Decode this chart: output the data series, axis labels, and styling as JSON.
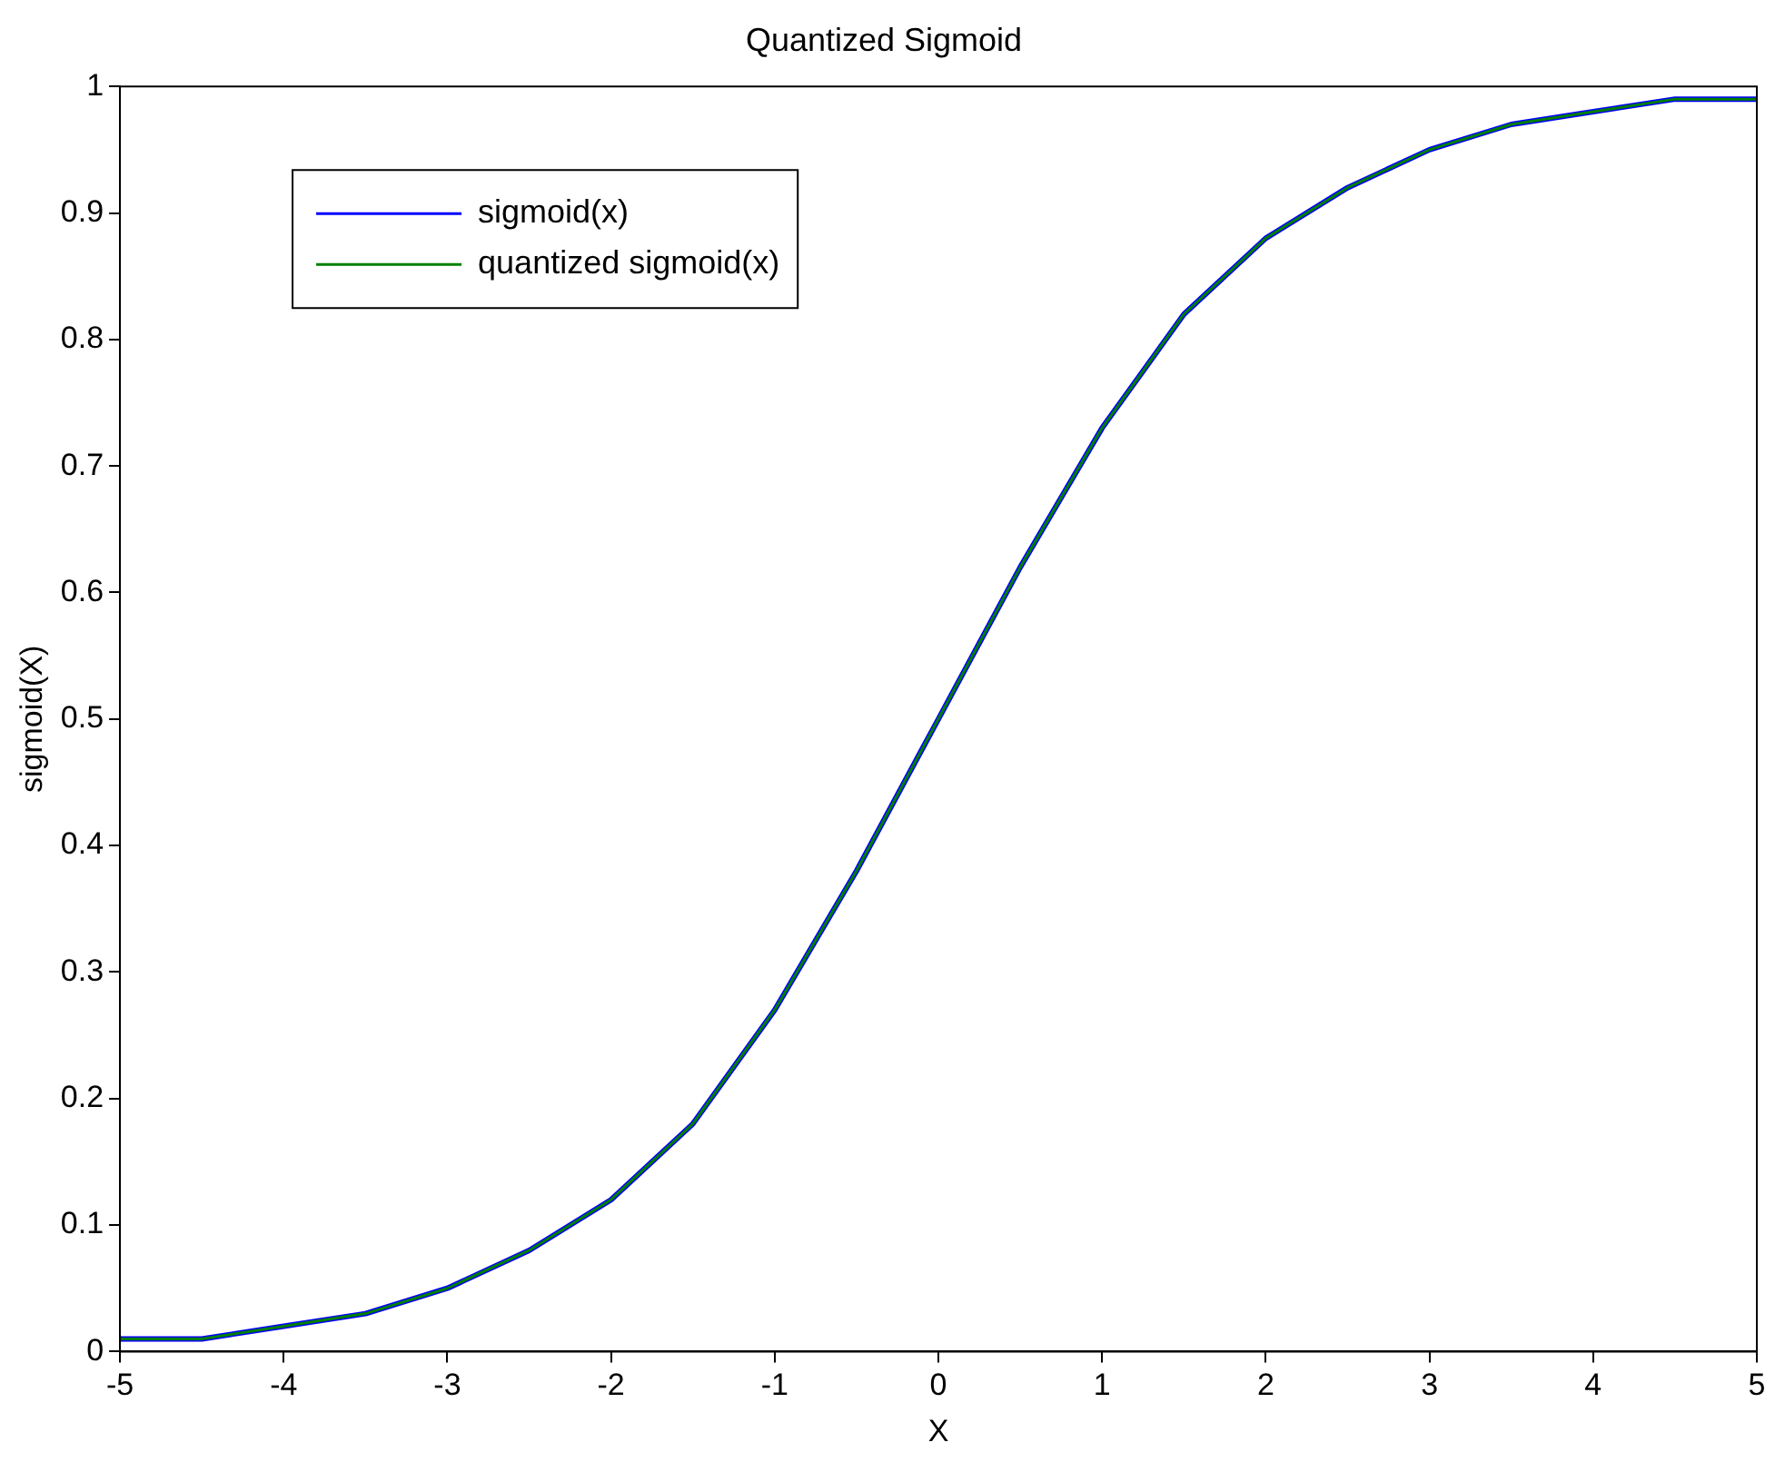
{
  "chart_data": {
    "type": "line",
    "title": "Quantized Sigmoid",
    "xlabel": "X",
    "ylabel": "sigmoid(X)",
    "x": [
      -5,
      -4.5,
      -4,
      -3.5,
      -3,
      -2.5,
      -2,
      -1.5,
      -1,
      -0.5,
      0,
      0.5,
      1,
      1.5,
      2,
      2.5,
      3,
      3.5,
      4,
      4.5,
      5
    ],
    "series": [
      {
        "name": "sigmoid(x)",
        "color": "#0000ff",
        "values": [
          0.01,
          0.01,
          0.02,
          0.03,
          0.05,
          0.08,
          0.12,
          0.18,
          0.27,
          0.38,
          0.5,
          0.62,
          0.73,
          0.82,
          0.88,
          0.92,
          0.95,
          0.97,
          0.98,
          0.99,
          0.99
        ]
      },
      {
        "name": "quantized sigmoid(x)",
        "color": "#008000",
        "values": [
          0.01,
          0.01,
          0.02,
          0.03,
          0.05,
          0.08,
          0.12,
          0.18,
          0.27,
          0.38,
          0.5,
          0.62,
          0.73,
          0.82,
          0.88,
          0.92,
          0.95,
          0.97,
          0.98,
          0.99,
          0.99
        ]
      }
    ],
    "xlim": [
      -5,
      5
    ],
    "xticks": [
      -5,
      -4,
      -3,
      -2,
      -1,
      0,
      1,
      2,
      3,
      4,
      5
    ],
    "ylim": [
      0,
      1
    ],
    "yticks": [
      0,
      0.1,
      0.2,
      0.3,
      0.4,
      0.5,
      0.6,
      0.7,
      0.8,
      0.9,
      1
    ],
    "grid": false,
    "legend": "top left",
    "marker": "none",
    "line_style": "solid"
  }
}
